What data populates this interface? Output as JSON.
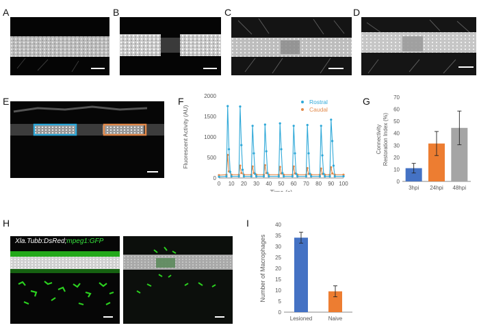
{
  "panels": {
    "A": "A",
    "B": "B",
    "C": "C",
    "D": "D",
    "E": "E",
    "F": "F",
    "G": "G",
    "H": "H",
    "I": "I"
  },
  "panel_h_title": {
    "part1": "Xla.Tubb:DsRed;",
    "part2": "mpeg1:GFP",
    "color1": "#ffffff",
    "color2": "#36e13c"
  },
  "colors": {
    "rostral": "#2ea8d8",
    "caudal": "#e2894a",
    "bar_blue": "#4472c4",
    "bar_orange": "#ed7d31",
    "bar_gray": "#a5a5a5",
    "gfp": "#2bd11f"
  },
  "chart_data": [
    {
      "id": "F",
      "type": "line",
      "xlabel": "Time (s)",
      "ylabel": "Fluorescent Activity (AU)",
      "xlim": [
        0,
        100
      ],
      "ylim": [
        0,
        2000
      ],
      "xticks": [
        "0",
        "10",
        "20",
        "30",
        "40",
        "50",
        "60",
        "70",
        "80",
        "90",
        "100"
      ],
      "yticks": [
        "0",
        "500",
        "1000",
        "1500",
        "2000"
      ],
      "legend": "top-right",
      "series": [
        {
          "name": "Rostral",
          "x": [
            0,
            6,
            7,
            8,
            9,
            10,
            16,
            17,
            18,
            19,
            20,
            26,
            27,
            28,
            29,
            30,
            36,
            37,
            38,
            39,
            40,
            48,
            49,
            50,
            51,
            52,
            59,
            60,
            61,
            62,
            63,
            70,
            71,
            72,
            73,
            74,
            81,
            82,
            83,
            84,
            85,
            89,
            90,
            91,
            92,
            93,
            100
          ],
          "y": [
            30,
            40,
            1750,
            700,
            150,
            40,
            40,
            1740,
            800,
            200,
            40,
            40,
            1270,
            600,
            100,
            40,
            40,
            1300,
            650,
            120,
            40,
            40,
            1330,
            700,
            120,
            40,
            40,
            1270,
            600,
            100,
            40,
            40,
            1290,
            600,
            100,
            40,
            40,
            1270,
            550,
            100,
            40,
            40,
            1420,
            900,
            300,
            40,
            40
          ]
        },
        {
          "name": "Caudal",
          "x": [
            0,
            6,
            7,
            8,
            10,
            16,
            17,
            18,
            20,
            26,
            27,
            28,
            30,
            36,
            37,
            38,
            40,
            48,
            49,
            50,
            52,
            59,
            60,
            61,
            63,
            70,
            71,
            72,
            74,
            81,
            82,
            83,
            85,
            89,
            90,
            91,
            93,
            100
          ],
          "y": [
            70,
            80,
            560,
            160,
            80,
            80,
            300,
            120,
            80,
            80,
            280,
            120,
            80,
            80,
            310,
            120,
            80,
            80,
            270,
            110,
            80,
            80,
            280,
            110,
            80,
            80,
            240,
            100,
            80,
            80,
            230,
            100,
            80,
            80,
            260,
            110,
            80,
            80
          ]
        }
      ]
    },
    {
      "id": "G",
      "type": "bar",
      "categories": [
        "3hpi",
        "24hpi",
        "48hpi"
      ],
      "values": [
        11,
        31.5,
        44.5
      ],
      "errors": [
        4,
        10,
        14
      ],
      "ylabel": "Connectivity Restoration Index (%)",
      "ylabel_lines": [
        "Connectivity",
        "Restoration Index (%)"
      ],
      "ylim": [
        0,
        70
      ],
      "yticks": [
        "0",
        "10",
        "20",
        "30",
        "40",
        "50",
        "60",
        "70"
      ]
    },
    {
      "id": "I",
      "type": "bar",
      "categories": [
        "Lesioned",
        "Naive"
      ],
      "values": [
        34,
        9.5
      ],
      "errors": [
        2.5,
        2.5
      ],
      "ylabel": "Number of Macrophages",
      "ylim": [
        0,
        40
      ],
      "yticks": [
        "0",
        "5",
        "10",
        "15",
        "20",
        "25",
        "30",
        "35",
        "40"
      ]
    }
  ]
}
